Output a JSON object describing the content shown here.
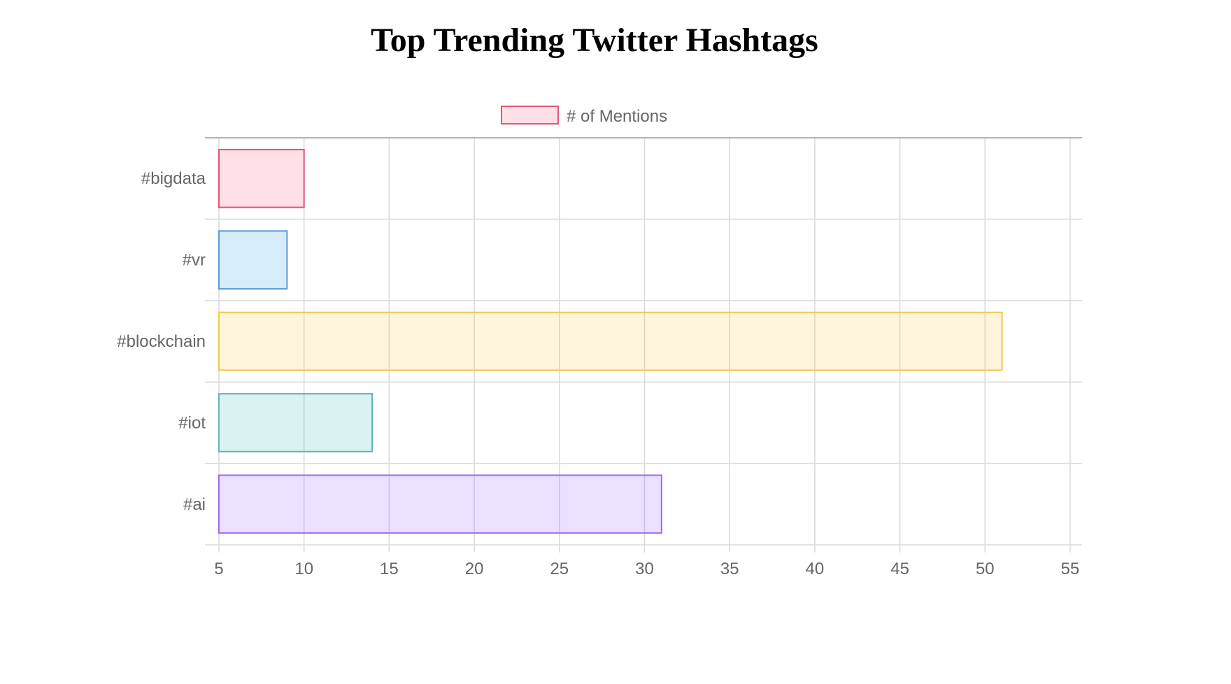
{
  "page": {
    "title": "Top Trending Twitter Hashtags"
  },
  "chart_data": {
    "type": "bar",
    "orientation": "horizontal",
    "categories": [
      "#bigdata",
      "#vr",
      "#blockchain",
      "#iot",
      "#ai"
    ],
    "series": [
      {
        "name": "# of Mentions",
        "values": [
          10,
          9,
          51,
          14,
          31
        ],
        "fill_colors": [
          "rgba(255,99,132,0.2)",
          "rgba(54,162,235,0.2)",
          "rgba(255,206,86,0.2)",
          "rgba(75,192,192,0.2)",
          "rgba(153,102,255,0.2)"
        ],
        "border_colors": [
          "#e0557a",
          "#5b9bd9",
          "#f0c94e",
          "#5fb7b0",
          "#9a6cf2"
        ]
      }
    ],
    "xlim": [
      5,
      55
    ],
    "x_ticks": [
      "5",
      "10",
      "15",
      "20",
      "25",
      "30",
      "35",
      "40",
      "45",
      "50",
      "55"
    ],
    "grid": true,
    "legend_position": "top"
  }
}
